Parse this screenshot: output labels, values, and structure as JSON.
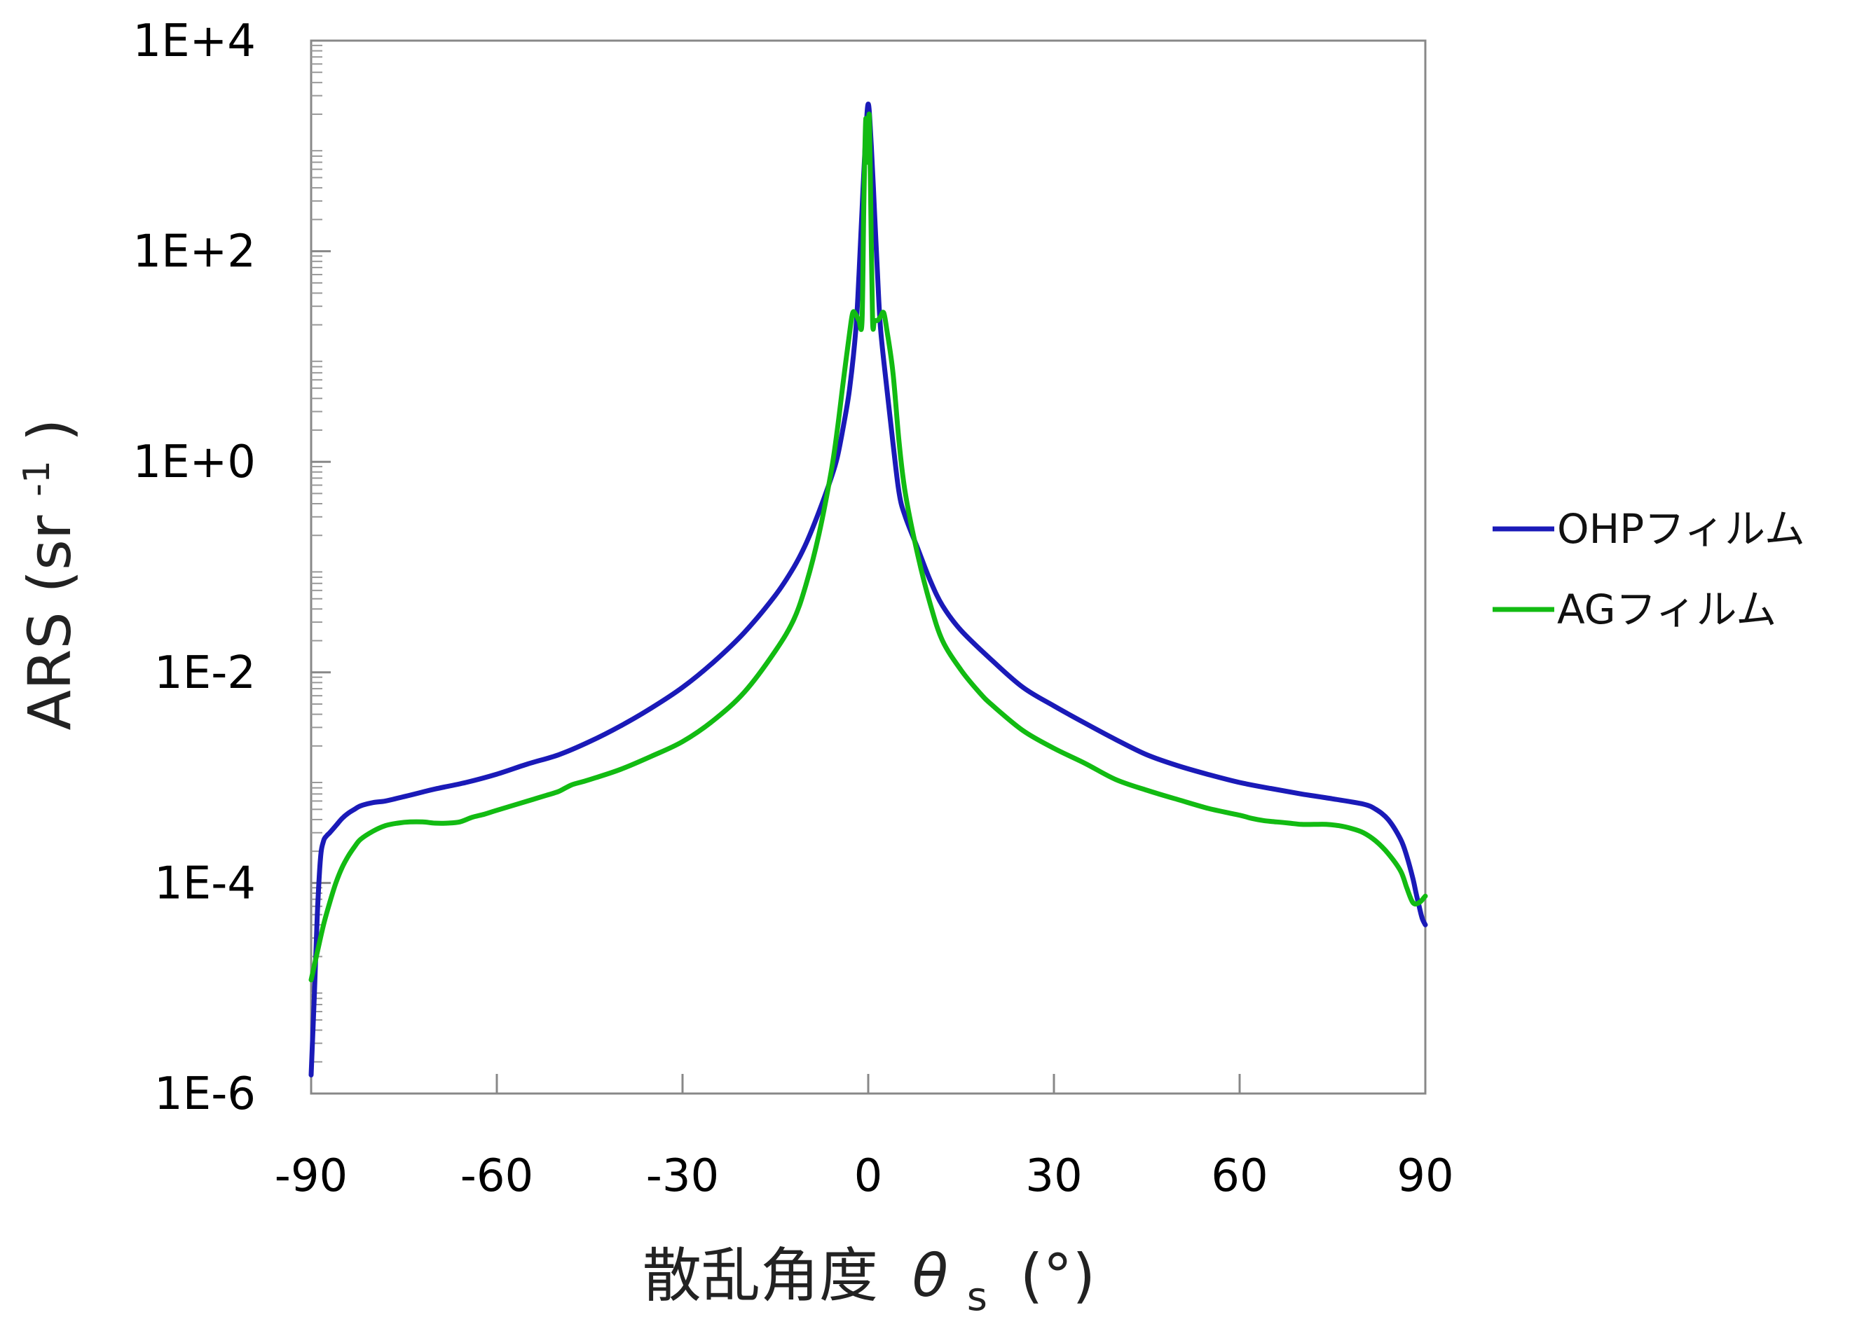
{
  "chart_data": {
    "type": "line",
    "xlabel": "散乱角度",
    "xlabel_symbol": "θ",
    "xlabel_subscript": "s",
    "xlabel_unit": "(°)",
    "ylabel": "ARS (sr",
    "ylabel_sup": "-1",
    "ylabel_close": ")",
    "xlim": [
      -90,
      90
    ],
    "ylim": [
      1e-06,
      10000.0
    ],
    "yscale": "log",
    "grid": false,
    "legend_position": "right",
    "x_ticks": [
      -90,
      -60,
      -30,
      0,
      30,
      60,
      90
    ],
    "x_tick_labels": [
      "-90",
      "-60",
      "-30",
      "0",
      "30",
      "60",
      "90"
    ],
    "y_ticks": [
      1e-06,
      0.0001,
      0.01,
      1,
      100,
      10000
    ],
    "y_tick_labels": [
      "1E-6",
      "1E-4",
      "1E-2",
      "1E+0",
      "1E+2",
      "1E+4"
    ],
    "series": [
      {
        "name": "OHPフィルム",
        "color": "#1a1ab8",
        "x": [
          -90,
          -89.5,
          -89,
          -88.5,
          -88,
          -87.5,
          -87,
          -86,
          -85,
          -84,
          -83,
          -82,
          -80,
          -78,
          -75,
          -72,
          -70,
          -65,
          -60,
          -55,
          -50,
          -45,
          -40,
          -35,
          -30,
          -25,
          -20,
          -15,
          -12,
          -10,
          -8,
          -6,
          -5,
          -4,
          -3,
          -2,
          -1.5,
          -1,
          -0.5,
          0,
          0.5,
          1,
          1.5,
          2,
          3,
          4,
          5,
          6,
          8,
          10,
          12,
          15,
          20,
          25,
          30,
          35,
          40,
          45,
          50,
          55,
          60,
          65,
          70,
          75,
          80,
          82,
          84,
          86,
          87,
          88,
          88.5,
          89,
          89.5,
          90
        ],
        "y": [
          1.5e-06,
          8e-06,
          5e-05,
          0.00017,
          0.00025,
          0.00028,
          0.0003,
          0.00035,
          0.00041,
          0.00046,
          0.0005,
          0.00054,
          0.00058,
          0.0006,
          0.00066,
          0.00073,
          0.00078,
          0.0009,
          0.00108,
          0.00135,
          0.00165,
          0.0022,
          0.0031,
          0.0046,
          0.0072,
          0.0125,
          0.024,
          0.054,
          0.1,
          0.17,
          0.33,
          0.7,
          1.1,
          2.2,
          5,
          18,
          60,
          250,
          1000,
          2500,
          1000,
          250,
          60,
          18,
          5,
          1.5,
          0.5,
          0.3,
          0.15,
          0.075,
          0.043,
          0.025,
          0.013,
          0.0072,
          0.0048,
          0.0033,
          0.0023,
          0.00165,
          0.0013,
          0.00107,
          0.0009,
          0.00079,
          0.0007,
          0.00063,
          0.00056,
          0.0005,
          0.0004,
          0.00026,
          0.00018,
          0.00011,
          8e-05,
          6e-05,
          4.6e-05,
          4e-05
        ]
      },
      {
        "name": "AGフィルム",
        "color": "#12bb12",
        "x": [
          -90,
          -89,
          -88,
          -87,
          -86,
          -85,
          -84,
          -83,
          -82,
          -80,
          -78,
          -76,
          -74,
          -72,
          -70,
          -68,
          -66,
          -64,
          -62,
          -60,
          -55,
          -52,
          -50,
          -48,
          -46,
          -44,
          -40,
          -35,
          -30,
          -25,
          -20,
          -15,
          -12,
          -10,
          -8,
          -6,
          -5,
          -4,
          -3,
          -2.5,
          -2,
          -1.5,
          -1,
          -0.7,
          -0.4,
          -0.2,
          0,
          0.2,
          0.4,
          0.7,
          1,
          1.5,
          2,
          2.5,
          3,
          4,
          5,
          6,
          8,
          10,
          12,
          15,
          18,
          20,
          25,
          30,
          35,
          40,
          45,
          50,
          55,
          60,
          62,
          64,
          66,
          68,
          70,
          72,
          74,
          76,
          78,
          80,
          82,
          84,
          86,
          87,
          88,
          89,
          90
        ],
        "y": [
          1.2e-05,
          2.2e-05,
          4e-05,
          6.5e-05,
          0.0001,
          0.00014,
          0.00018,
          0.00022,
          0.00026,
          0.00031,
          0.00035,
          0.00037,
          0.00038,
          0.00038,
          0.00037,
          0.00037,
          0.00038,
          0.00042,
          0.00045,
          0.00049,
          0.0006,
          0.00068,
          0.00074,
          0.00085,
          0.00092,
          0.001,
          0.0012,
          0.0016,
          0.0022,
          0.0035,
          0.0065,
          0.016,
          0.032,
          0.07,
          0.2,
          0.8,
          2,
          6,
          17,
          26,
          25,
          22,
          22,
          300,
          1800,
          700,
          1500,
          1800,
          300,
          22,
          22,
          22,
          24,
          26,
          18,
          7,
          1.5,
          0.5,
          0.13,
          0.045,
          0.02,
          0.0105,
          0.0064,
          0.0049,
          0.0028,
          0.0019,
          0.00137,
          0.00096,
          0.00076,
          0.00062,
          0.00051,
          0.00044,
          0.00041,
          0.00039,
          0.00038,
          0.00037,
          0.00036,
          0.00036,
          0.00036,
          0.00035,
          0.00033,
          0.0003,
          0.00025,
          0.00019,
          0.00013,
          9e-05,
          6.5e-05,
          6.5e-05,
          7.5e-05
        ]
      }
    ]
  }
}
